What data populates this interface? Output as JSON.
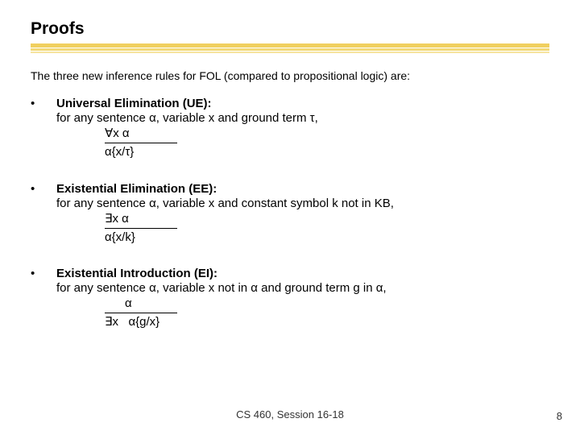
{
  "title": "Proofs",
  "underline": {
    "colors": [
      "#f0d060",
      "#f2d978",
      "#f6e4a0"
    ]
  },
  "intro": "The three new inference rules for FOL (compared to propositional logic) are:",
  "items": [
    {
      "bullet": "•",
      "title": "Universal Elimination (UE):",
      "desc": "for any sentence α, variable x and ground term τ,",
      "top": "∀x   α",
      "bottom": "α{x/τ}"
    },
    {
      "bullet": "•",
      "title": "Existential Elimination (EE):",
      "desc": "for any sentence α, variable x and constant symbol k not in KB,",
      "top": "∃x   α",
      "bottom": "α{x/k}"
    },
    {
      "bullet": "•",
      "title": "Existential Introduction (EI):",
      "desc": "for any sentence α, variable x not in α and ground term g in α,",
      "top": "      α",
      "bottom": "∃x   α{g/x}"
    }
  ],
  "footer": "CS 460, Session 16-18",
  "pagenum": "8"
}
